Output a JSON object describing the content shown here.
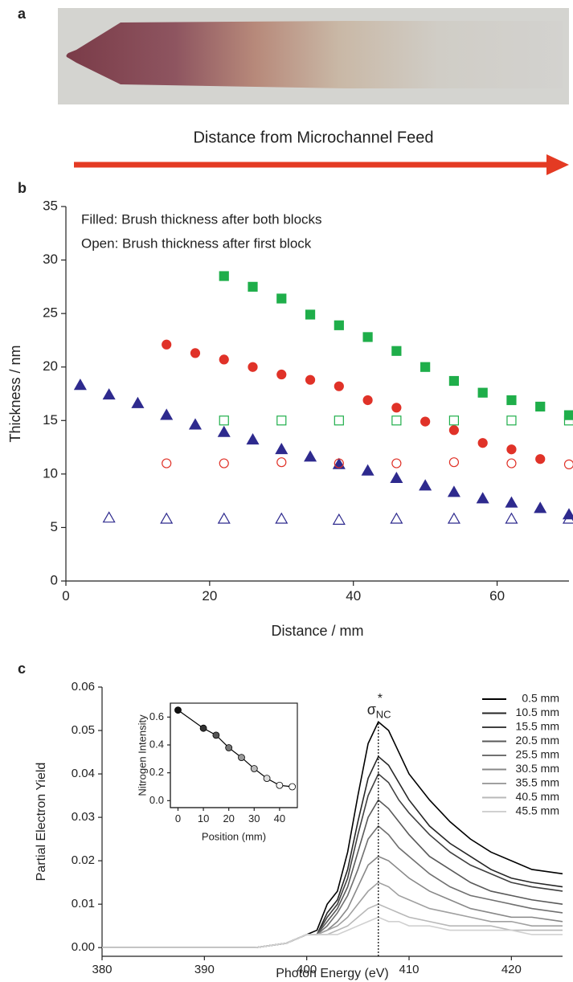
{
  "panel_a": {
    "panel": "a",
    "caption": "Distance from Microchannel Feed"
  },
  "chart_data": [
    {
      "type": "scatter",
      "panel": "b",
      "xlabel": "Distance / mm",
      "ylabel": "Thickness / nm",
      "annotations": [
        "Filled: Brush thickness after both blocks",
        "Open: Brush thickness after first block"
      ],
      "xlim": [
        0,
        70
      ],
      "xticks": [
        0,
        20,
        40,
        60
      ],
      "ylim": [
        0,
        35
      ],
      "yticks": [
        0,
        5,
        10,
        15,
        20,
        25,
        30,
        35
      ],
      "series": [
        {
          "color": "#2e2a8e",
          "marker": "triangle",
          "filled": true,
          "x": [
            2,
            6,
            10,
            14,
            18,
            22,
            26,
            30,
            34,
            38,
            42,
            46,
            50,
            54,
            58,
            62,
            66,
            70
          ],
          "values": [
            18.3,
            17.4,
            16.6,
            15.5,
            14.6,
            13.9,
            13.2,
            12.3,
            11.6,
            10.9,
            10.3,
            9.6,
            8.9,
            8.3,
            7.7,
            7.3,
            6.8,
            6.2
          ]
        },
        {
          "color": "#2e2a8e",
          "marker": "triangle",
          "filled": false,
          "x": [
            6,
            14,
            22,
            30,
            38,
            46,
            54,
            62,
            70
          ],
          "values": [
            5.9,
            5.8,
            5.8,
            5.8,
            5.7,
            5.8,
            5.8,
            5.8,
            5.8
          ]
        },
        {
          "color": "#e03228",
          "marker": "circle",
          "filled": true,
          "x": [
            14,
            18,
            22,
            26,
            30,
            34,
            38,
            42,
            46,
            50,
            54,
            58,
            62,
            66
          ],
          "values": [
            22.1,
            21.3,
            20.7,
            20.0,
            19.3,
            18.8,
            18.2,
            16.9,
            16.2,
            14.9,
            14.1,
            12.9,
            12.3,
            11.4
          ]
        },
        {
          "color": "#e03228",
          "marker": "circle",
          "filled": false,
          "x": [
            14,
            22,
            30,
            38,
            46,
            54,
            62,
            70
          ],
          "values": [
            11.0,
            11.0,
            11.1,
            11.0,
            11.0,
            11.1,
            11.0,
            10.9
          ]
        },
        {
          "color": "#1fae4a",
          "marker": "square",
          "filled": true,
          "x": [
            22,
            26,
            30,
            34,
            38,
            42,
            46,
            50,
            54,
            58,
            62,
            66,
            70
          ],
          "values": [
            28.5,
            27.5,
            26.4,
            24.9,
            23.9,
            22.8,
            21.5,
            20.0,
            18.7,
            17.6,
            16.9,
            16.3,
            15.5
          ]
        },
        {
          "color": "#1fae4a",
          "marker": "square",
          "filled": false,
          "x": [
            22,
            30,
            38,
            46,
            54,
            62,
            70
          ],
          "values": [
            15.0,
            15.0,
            15.0,
            15.0,
            15.0,
            15.0,
            15.0
          ]
        }
      ]
    },
    {
      "type": "line",
      "panel": "c",
      "xlabel": "Photon Energy (eV)",
      "ylabel": "Partial Electron Yield",
      "annotation": {
        "symbol": "σ",
        "superscript": "*",
        "subscript": "NC",
        "x": 407
      },
      "xlim": [
        380,
        425
      ],
      "xticks": [
        380,
        390,
        400,
        410,
        420
      ],
      "ylim": [
        -0.002,
        0.06
      ],
      "yticks": [
        {
          "value": 0,
          "label": "0.00"
        },
        {
          "value": 0.01,
          "label": "0.01"
        },
        {
          "value": 0.02,
          "label": "0.02"
        },
        {
          "value": 0.03,
          "label": "0.03"
        },
        {
          "value": 0.04,
          "label": "0.04"
        },
        {
          "value": 0.05,
          "label": "0.05"
        },
        {
          "value": 0.06,
          "label": "0.06"
        }
      ],
      "x": [
        380,
        385,
        390,
        395,
        398,
        399,
        400,
        401,
        402,
        403,
        404,
        405,
        406,
        407,
        408,
        409,
        410,
        412,
        414,
        416,
        418,
        420,
        422,
        425
      ],
      "series": [
        {
          "name": "0.5 mm",
          "color": "#000000",
          "values": [
            0,
            0,
            0,
            0,
            0.001,
            0.002,
            0.003,
            0.004,
            0.01,
            0.013,
            0.022,
            0.035,
            0.047,
            0.052,
            0.05,
            0.045,
            0.04,
            0.034,
            0.029,
            0.025,
            0.022,
            0.02,
            0.018,
            0.017
          ]
        },
        {
          "name": "10.5 mm",
          "color": "#262626",
          "values": [
            0,
            0,
            0,
            0,
            0.001,
            0.002,
            0.003,
            0.003,
            0.008,
            0.011,
            0.018,
            0.029,
            0.039,
            0.044,
            0.042,
            0.038,
            0.034,
            0.028,
            0.024,
            0.021,
            0.018,
            0.016,
            0.015,
            0.014
          ]
        },
        {
          "name": "15.5 mm",
          "color": "#404040",
          "values": [
            0,
            0,
            0,
            0,
            0.001,
            0.002,
            0.003,
            0.003,
            0.007,
            0.01,
            0.016,
            0.026,
            0.035,
            0.04,
            0.038,
            0.034,
            0.031,
            0.026,
            0.022,
            0.019,
            0.017,
            0.015,
            0.014,
            0.013
          ]
        },
        {
          "name": "20.5 mm",
          "color": "#595959",
          "values": [
            0,
            0,
            0,
            0,
            0.001,
            0.002,
            0.003,
            0.003,
            0.006,
            0.009,
            0.014,
            0.022,
            0.03,
            0.034,
            0.032,
            0.029,
            0.026,
            0.021,
            0.018,
            0.015,
            0.013,
            0.012,
            0.011,
            0.01
          ]
        },
        {
          "name": "25.5 mm",
          "color": "#707070",
          "values": [
            0,
            0,
            0,
            0,
            0.001,
            0.002,
            0.003,
            0.003,
            0.005,
            0.008,
            0.012,
            0.018,
            0.025,
            0.028,
            0.026,
            0.023,
            0.021,
            0.017,
            0.014,
            0.012,
            0.011,
            0.01,
            0.009,
            0.008
          ]
        },
        {
          "name": "30.5 mm",
          "color": "#888888",
          "values": [
            0,
            0,
            0,
            0,
            0.001,
            0.002,
            0.003,
            0.003,
            0.004,
            0.006,
            0.009,
            0.014,
            0.019,
            0.021,
            0.02,
            0.018,
            0.016,
            0.013,
            0.011,
            0.009,
            0.008,
            0.007,
            0.007,
            0.006
          ]
        },
        {
          "name": "35.5 mm",
          "color": "#a0a0a0",
          "values": [
            0,
            0,
            0,
            0,
            0.001,
            0.002,
            0.003,
            0.003,
            0.004,
            0.005,
            0.007,
            0.01,
            0.013,
            0.015,
            0.014,
            0.012,
            0.011,
            0.009,
            0.008,
            0.007,
            0.006,
            0.006,
            0.005,
            0.005
          ]
        },
        {
          "name": "40.5 mm",
          "color": "#b8b8b8",
          "values": [
            0,
            0,
            0,
            0,
            0.001,
            0.002,
            0.003,
            0.003,
            0.003,
            0.004,
            0.005,
            0.007,
            0.009,
            0.01,
            0.009,
            0.008,
            0.007,
            0.006,
            0.005,
            0.005,
            0.005,
            0.004,
            0.004,
            0.004
          ]
        },
        {
          "name": "45.5 mm",
          "color": "#d0d0d0",
          "values": [
            0,
            0,
            0,
            0,
            0.001,
            0.002,
            0.003,
            0.003,
            0.003,
            0.003,
            0.004,
            0.005,
            0.006,
            0.007,
            0.006,
            0.006,
            0.005,
            0.005,
            0.004,
            0.004,
            0.004,
            0.004,
            0.003,
            0.003
          ]
        }
      ]
    },
    {
      "type": "line",
      "xlabel": "Position (mm)",
      "ylabel": "Nitrogen Intensity",
      "xlim": [
        -3,
        47
      ],
      "xticks": [
        0,
        10,
        20,
        30,
        40
      ],
      "ylim": [
        -0.05,
        0.7
      ],
      "yticks": [
        {
          "value": 0,
          "label": "0.0"
        },
        {
          "value": 0.2,
          "label": "0.2"
        },
        {
          "value": 0.4,
          "label": "0.4"
        },
        {
          "value": 0.6,
          "label": "0.6"
        }
      ],
      "x": [
        0,
        10,
        15,
        20,
        25,
        30,
        35,
        40,
        45
      ],
      "series": [
        {
          "color": "#000000",
          "marker_colors": [
            "#111111",
            "#333333",
            "#555555",
            "#777777",
            "#999999",
            "#bbbbbb",
            "#dddddd",
            "#f4f4f4",
            "#ffffff"
          ],
          "values": [
            0.65,
            0.52,
            0.47,
            0.38,
            0.31,
            0.23,
            0.16,
            0.11,
            0.1
          ]
        }
      ]
    }
  ]
}
